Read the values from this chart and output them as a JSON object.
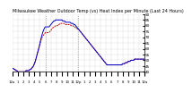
{
  "title": "Milwaukee Weather Outdoor Temp (vs) Heat Index per Minute (Last 24 Hours)",
  "title_fontsize": 3.5,
  "bg_color": "#ffffff",
  "plot_bg_color": "#ffffff",
  "grid_color": "#cccccc",
  "line1_color": "#cc0000",
  "line2_color": "#0000cc",
  "line1_label": "Outdoor Temp",
  "line2_label": "Heat Index",
  "ylim": [
    40,
    90
  ],
  "yticks": [
    40,
    45,
    50,
    55,
    60,
    65,
    70,
    75,
    80,
    85,
    90
  ],
  "ytick_fontsize": 3.0,
  "xtick_fontsize": 2.8,
  "vline_positions": [
    0.25,
    0.5
  ],
  "vline_color": "#999999",
  "vline_style": ":",
  "red_curve": [
    43,
    43,
    42,
    42,
    41,
    41,
    40,
    40,
    40,
    40,
    40,
    40,
    40,
    40,
    40,
    41,
    41,
    41,
    41,
    42,
    42,
    43,
    44,
    45,
    47,
    49,
    52,
    55,
    58,
    61,
    64,
    67,
    69,
    71,
    72,
    73,
    74,
    74,
    74,
    74,
    74,
    75,
    76,
    77,
    78,
    79,
    79,
    80,
    80,
    80,
    81,
    81,
    82,
    82,
    82,
    82,
    82,
    82,
    81,
    81,
    81,
    81,
    81,
    81,
    80,
    80,
    80,
    79,
    79,
    78,
    78,
    77,
    77,
    76,
    75,
    74,
    73,
    72,
    71,
    70,
    69,
    68,
    67,
    66,
    65,
    64,
    63,
    62,
    61,
    60,
    59,
    58,
    57,
    56,
    55,
    54,
    53,
    52,
    51,
    50,
    49,
    48,
    47,
    46,
    46,
    46,
    46,
    46,
    46,
    46,
    46,
    46,
    46,
    46,
    46,
    46,
    46,
    46,
    46,
    46,
    47,
    47,
    47,
    48,
    48,
    48,
    49,
    49,
    49,
    50,
    50,
    50,
    50,
    51,
    51,
    51,
    51,
    51,
    51,
    51,
    51,
    51,
    51,
    51,
    51
  ],
  "blue_curve": [
    43,
    43,
    42,
    42,
    41,
    41,
    40,
    40,
    40,
    40,
    40,
    40,
    40,
    40,
    40,
    41,
    41,
    41,
    41,
    42,
    42,
    43,
    44,
    45,
    47,
    49,
    52,
    55,
    58,
    61,
    64,
    68,
    71,
    74,
    76,
    78,
    79,
    79,
    79,
    79,
    79,
    80,
    81,
    82,
    83,
    84,
    84,
    85,
    85,
    85,
    85,
    85,
    85,
    85,
    85,
    84,
    84,
    84,
    83,
    83,
    83,
    83,
    83,
    83,
    82,
    82,
    82,
    81,
    81,
    80,
    79,
    78,
    77,
    76,
    75,
    74,
    73,
    72,
    71,
    70,
    69,
    68,
    67,
    66,
    65,
    64,
    63,
    62,
    61,
    60,
    59,
    58,
    57,
    56,
    55,
    54,
    53,
    52,
    51,
    50,
    49,
    48,
    47,
    46,
    46,
    46,
    46,
    46,
    46,
    46,
    46,
    46,
    46,
    46,
    46,
    46,
    46,
    46,
    46,
    46,
    47,
    47,
    47,
    48,
    48,
    48,
    49,
    49,
    49,
    50,
    50,
    50,
    50,
    51,
    51,
    51,
    51,
    51,
    51,
    51,
    51,
    51,
    51,
    51,
    51
  ],
  "xtick_labels": [
    "12a",
    "1",
    "2",
    "3",
    "4",
    "5",
    "6",
    "7",
    "8",
    "9",
    "10",
    "11",
    "12p",
    "1",
    "2",
    "3",
    "4",
    "5",
    "6",
    "7",
    "8",
    "9",
    "10",
    "11",
    "12a"
  ],
  "n_xticks": 25
}
